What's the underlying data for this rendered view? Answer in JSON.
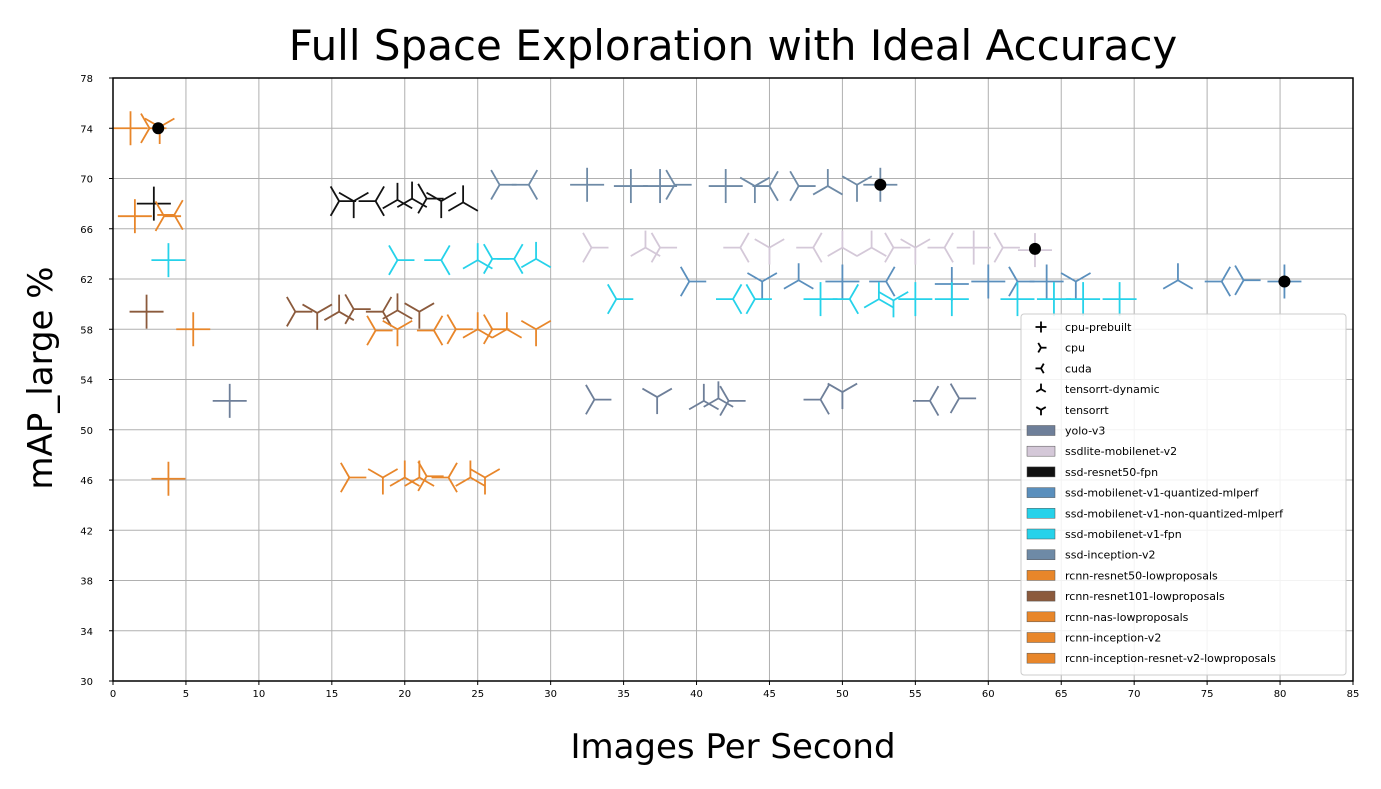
{
  "chart_data": {
    "type": "scatter",
    "title": "Full Space Exploration with Ideal Accuracy",
    "xlabel": "Images Per Second",
    "ylabel": "mAP_large %",
    "xlim": [
      0,
      85
    ],
    "ylim": [
      30,
      78
    ],
    "xticks": [
      "0",
      "5",
      "10",
      "15",
      "20",
      "25",
      "30",
      "35",
      "40",
      "45",
      "50",
      "55",
      "60",
      "65",
      "70",
      "75",
      "80",
      "85"
    ],
    "yticks": [
      "30",
      "34",
      "38",
      "42",
      "46",
      "50",
      "54",
      "58",
      "62",
      "66",
      "70",
      "74",
      "78"
    ],
    "grid": true,
    "legend_position": "lower-right",
    "marker_legend": [
      {
        "label": " cpu-prebuilt",
        "marker": "plus"
      },
      {
        "label": " cpu",
        "marker": "tri_right"
      },
      {
        "label": "cuda",
        "marker": "tri_left"
      },
      {
        "label": "tensorrt-dynamic",
        "marker": "tri_up"
      },
      {
        "label": "tensorrt",
        "marker": "tri_down"
      }
    ],
    "series": [
      {
        "name": "yolo-v3",
        "color": "#6e7f99",
        "points": [
          [
            8,
            52.3,
            "plus"
          ],
          [
            33,
            52.4,
            "tri_right"
          ],
          [
            37.3,
            52.6,
            "tri_down"
          ],
          [
            40.5,
            52.3,
            "tri_up"
          ],
          [
            41.5,
            52.5,
            "tri_up"
          ],
          [
            42.2,
            52.3,
            "tri_right"
          ],
          [
            48.5,
            52.4,
            "tri_left"
          ],
          [
            50,
            53,
            "tri_down"
          ],
          [
            56,
            52.3,
            "tri_left"
          ],
          [
            58,
            52.5,
            "tri_right"
          ]
        ]
      },
      {
        "name": "ssdlite-mobilenet-v2",
        "color": "#d4c8d8",
        "points": [
          [
            32.8,
            64.5,
            "tri_right"
          ],
          [
            36.5,
            64.5,
            "tri_up"
          ],
          [
            37.5,
            64.5,
            "tri_right"
          ],
          [
            43,
            64.5,
            "tri_left"
          ],
          [
            45,
            64.5,
            "tri_down"
          ],
          [
            48,
            64.5,
            "tri_left"
          ],
          [
            50,
            64.5,
            "tri_up"
          ],
          [
            52,
            64.5,
            "tri_up"
          ],
          [
            53.5,
            64.5,
            "tri_right"
          ],
          [
            55,
            64.5,
            "tri_down"
          ],
          [
            57,
            64.5,
            "tri_left"
          ],
          [
            59,
            64.5,
            "plus"
          ],
          [
            61,
            64.5,
            "tri_right"
          ],
          [
            63.2,
            64.3,
            "plus"
          ]
        ]
      },
      {
        "name": "ssd-resnet50-fpn",
        "color": "#111111",
        "points": [
          [
            2.8,
            68,
            "plus"
          ],
          [
            15.5,
            68.2,
            "tri_right"
          ],
          [
            16.5,
            68.2,
            "tri_down"
          ],
          [
            18,
            68.2,
            "tri_left"
          ],
          [
            19.5,
            68.3,
            "tri_up"
          ],
          [
            20.5,
            68.4,
            "tri_up"
          ],
          [
            21.5,
            68.4,
            "tri_right"
          ],
          [
            22.5,
            68.2,
            "tri_down"
          ],
          [
            24,
            68.1,
            "tri_up"
          ]
        ]
      },
      {
        "name": "ssd-mobilenet-v1-quantized-mlperf",
        "color": "#5a8fbd",
        "points": [
          [
            39.5,
            61.8,
            "tri_right"
          ],
          [
            44.5,
            61.8,
            "tri_down"
          ],
          [
            47,
            61.9,
            "tri_up"
          ],
          [
            50,
            61.8,
            "plus"
          ],
          [
            53,
            61.8,
            "tri_left"
          ],
          [
            57.5,
            61.6,
            "plus"
          ],
          [
            60,
            61.8,
            "plus"
          ],
          [
            62,
            61.8,
            "tri_right"
          ],
          [
            64,
            61.8,
            "plus"
          ],
          [
            66,
            61.8,
            "tri_down"
          ],
          [
            73,
            61.9,
            "tri_up"
          ],
          [
            76,
            61.8,
            "tri_left"
          ],
          [
            77.5,
            61.9,
            "tri_right"
          ],
          [
            80.3,
            61.8,
            "plus"
          ]
        ]
      },
      {
        "name": "ssd-mobilenet-v1-non-quantized-mlperf",
        "color": "#26d2ea",
        "points": [
          [
            34.5,
            60.4,
            "tri_right"
          ],
          [
            42.5,
            60.4,
            "tri_left"
          ],
          [
            44,
            60.4,
            "tri_right"
          ],
          [
            48.5,
            60.4,
            "plus"
          ],
          [
            50.5,
            60.4,
            "tri_left"
          ],
          [
            52.5,
            60.4,
            "tri_up"
          ],
          [
            53.5,
            60.3,
            "tri_down"
          ],
          [
            55,
            60.4,
            "plus"
          ],
          [
            57.5,
            60.4,
            "plus"
          ],
          [
            62,
            60.4,
            "plus"
          ],
          [
            64.5,
            60.4,
            "plus"
          ],
          [
            66.5,
            60.4,
            "plus"
          ],
          [
            69,
            60.4,
            "plus"
          ]
        ]
      },
      {
        "name": "ssd-mobilenet-v1-fpn",
        "color": "#26d2ea",
        "points": [
          [
            3.8,
            63.5,
            "plus"
          ],
          [
            19.5,
            63.5,
            "tri_right"
          ],
          [
            22.5,
            63.5,
            "tri_left"
          ],
          [
            25,
            63.5,
            "tri_up"
          ],
          [
            26,
            63.6,
            "tri_right"
          ],
          [
            27.5,
            63.6,
            "tri_left"
          ],
          [
            29,
            63.6,
            "tri_up"
          ]
        ]
      },
      {
        "name": "ssd-inception-v2",
        "color": "#6e8aa6",
        "points": [
          [
            26.5,
            69.5,
            "tri_right"
          ],
          [
            28.5,
            69.5,
            "tri_left"
          ],
          [
            32.5,
            69.5,
            "plus"
          ],
          [
            35.5,
            69.4,
            "plus"
          ],
          [
            37.5,
            69.4,
            "plus"
          ],
          [
            38.5,
            69.5,
            "tri_right"
          ],
          [
            42,
            69.4,
            "plus"
          ],
          [
            44,
            69.4,
            "tri_down"
          ],
          [
            45,
            69.4,
            "tri_left"
          ],
          [
            47,
            69.4,
            "tri_right"
          ],
          [
            49,
            69.4,
            "tri_up"
          ],
          [
            51,
            69.5,
            "tri_down"
          ],
          [
            52.6,
            69.5,
            "plus"
          ]
        ]
      },
      {
        "name": "rcnn-resnet50-lowproposals",
        "color": "#e8862a",
        "points": [
          [
            1.2,
            74,
            "plus"
          ],
          [
            2.5,
            74,
            "tri_right"
          ],
          [
            3.2,
            74.1,
            "tri_down"
          ],
          [
            1.5,
            67,
            "plus"
          ],
          [
            3.5,
            67,
            "tri_right"
          ],
          [
            4.2,
            67.1,
            "tri_left"
          ]
        ]
      },
      {
        "name": "rcnn-resnet101-lowproposals",
        "color": "#8b5a3c",
        "points": [
          [
            2.3,
            59.4,
            "plus"
          ],
          [
            12.5,
            59.4,
            "tri_right"
          ],
          [
            14,
            59.3,
            "tri_down"
          ],
          [
            15.5,
            59.4,
            "tri_up"
          ],
          [
            16.5,
            59.6,
            "tri_right"
          ],
          [
            18.5,
            59.4,
            "tri_left"
          ],
          [
            19.5,
            59.5,
            "tri_up"
          ],
          [
            21,
            59.4,
            "tri_down"
          ]
        ]
      },
      {
        "name": "rcnn-nas-lowproposals",
        "color": "#e8862a",
        "points": [
          [
            16.2,
            46.2,
            "tri_right"
          ],
          [
            18.5,
            46.2,
            "tri_down"
          ],
          [
            20,
            46.2,
            "tri_up"
          ],
          [
            21,
            46.2,
            "tri_up"
          ],
          [
            21.5,
            46.3,
            "tri_right"
          ],
          [
            23,
            46.2,
            "tri_left"
          ],
          [
            24.5,
            46.2,
            "tri_up"
          ],
          [
            25.5,
            46.2,
            "tri_down"
          ],
          [
            3.8,
            46.1,
            "plus"
          ]
        ]
      },
      {
        "name": "rcnn-inception-v2",
        "color": "#e8862a",
        "points": [
          [
            5.5,
            58,
            "plus"
          ],
          [
            18,
            57.9,
            "tri_right"
          ],
          [
            19.5,
            58,
            "tri_down"
          ],
          [
            22,
            57.9,
            "tri_left"
          ],
          [
            23.5,
            58,
            "tri_right"
          ],
          [
            25,
            58,
            "tri_up"
          ],
          [
            26,
            58,
            "tri_right"
          ],
          [
            27,
            58,
            "tri_up"
          ],
          [
            29,
            58,
            "tri_down"
          ]
        ]
      },
      {
        "name": "rcnn-inception-resnet-v2-lowproposals",
        "color": "#e8862a",
        "points": []
      }
    ],
    "pareto_points": [
      [
        3.1,
        74
      ],
      [
        52.6,
        69.5
      ],
      [
        63.2,
        64.4
      ],
      [
        80.3,
        61.8
      ]
    ]
  }
}
